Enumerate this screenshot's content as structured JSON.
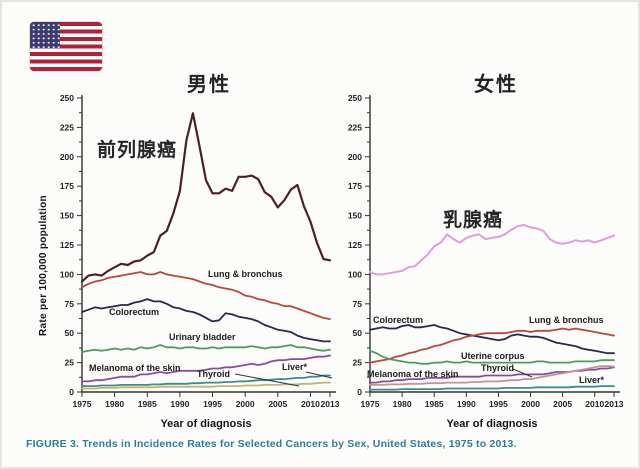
{
  "figure": {
    "caption": "FIGURE 3. Trends in Incidence Rates for Selected Cancers by Sex, United States, 1975 to 2013.",
    "caption_color": "#2a7e9e",
    "flag_icon": "us-flag",
    "axis_color": "#333333"
  },
  "chart_data": [
    {
      "type": "line",
      "title": "男性",
      "xlabel": "Year of diagnosis",
      "ylabel": "Rate per 100,000 population",
      "x_range": [
        1975,
        2013
      ],
      "ylim": [
        0,
        250
      ],
      "y_tick_step": 25,
      "grid": false,
      "x_tick_labels": [
        "1975",
        "1980",
        "1985",
        "1990",
        "1995",
        "2000",
        "2005",
        "2010",
        "2013"
      ],
      "series": [
        {
          "label": "前列腺癌",
          "color": "#4a2222",
          "values": [
            94,
            99,
            100,
            99,
            103,
            106,
            109,
            108,
            111,
            112,
            116,
            119,
            133,
            137,
            152,
            171,
            214,
            237,
            209,
            180,
            169,
            169,
            173,
            171,
            183,
            183,
            184,
            181,
            170,
            166,
            157,
            163,
            172,
            176,
            158,
            145,
            127,
            113,
            112
          ]
        },
        {
          "label": "Lung & bronchus",
          "color": "#b9463c",
          "values": [
            89,
            92,
            94,
            95,
            97,
            98,
            99,
            100,
            101,
            102,
            100,
            100,
            102,
            100,
            99,
            98,
            97,
            96,
            94,
            92,
            91,
            89,
            88,
            87,
            85,
            82,
            81,
            79,
            78,
            76,
            75,
            73,
            73,
            71,
            69,
            67,
            65,
            63,
            62
          ]
        },
        {
          "label": "Colorectum",
          "color": "#262b47",
          "values": [
            68,
            70,
            72,
            71,
            72,
            73,
            74,
            74,
            76,
            77,
            79,
            77,
            77,
            75,
            72,
            71,
            69,
            68,
            66,
            63,
            60,
            61,
            67,
            66,
            64,
            63,
            62,
            60,
            57,
            55,
            53,
            52,
            51,
            48,
            46,
            45,
            44,
            43,
            43
          ]
        },
        {
          "label": "Urinary bladder",
          "color": "#4d9c60",
          "values": [
            34,
            35,
            36,
            35,
            36,
            37,
            36,
            37,
            36,
            38,
            37,
            38,
            40,
            38,
            38,
            37,
            38,
            38,
            37,
            37,
            38,
            37,
            38,
            38,
            38,
            38,
            39,
            38,
            37,
            38,
            38,
            39,
            40,
            38,
            38,
            37,
            36,
            35,
            36
          ]
        },
        {
          "label": "Melanoma of the skin",
          "color": "#8a4b9c",
          "values": [
            9,
            9,
            10,
            10,
            11,
            12,
            13,
            13,
            13,
            15,
            15,
            16,
            17,
            16,
            17,
            18,
            18,
            18,
            18,
            19,
            20,
            20,
            21,
            21,
            22,
            23,
            24,
            23,
            24,
            26,
            27,
            27,
            28,
            28,
            28,
            29,
            30,
            30,
            31
          ]
        },
        {
          "label": "Liver*",
          "color": "#3b8d8d",
          "values": [
            5,
            5,
            5,
            5.5,
            5.5,
            5.5,
            6,
            6,
            6,
            6,
            6,
            6.5,
            6.5,
            7,
            7,
            7,
            7,
            7.5,
            7.5,
            8,
            8,
            8,
            8.5,
            8.5,
            9,
            9,
            9.5,
            10,
            10,
            10.5,
            11,
            11,
            11.5,
            12,
            12,
            13,
            13,
            14,
            14
          ]
        },
        {
          "label": "Thyroid",
          "color": "#c3b36d",
          "values": [
            3,
            3,
            3,
            3.5,
            3.5,
            3.5,
            4,
            4,
            4,
            4,
            4,
            4,
            4.5,
            4.5,
            4.5,
            4.5,
            4.5,
            4.5,
            4.5,
            4.5,
            4.5,
            5,
            5,
            5,
            5,
            5.5,
            5.5,
            5.5,
            6,
            6,
            6,
            6.5,
            6.5,
            6.5,
            7,
            7,
            7.5,
            8,
            8
          ]
        }
      ]
    },
    {
      "type": "line",
      "title": "女性",
      "xlabel": "Year of diagnosis",
      "ylabel": "",
      "x_range": [
        1975,
        2013
      ],
      "ylim": [
        0,
        250
      ],
      "y_tick_step": 25,
      "grid": false,
      "x_tick_labels": [
        "1975",
        "1980",
        "1985",
        "1990",
        "1995",
        "2000",
        "2005",
        "2010",
        "2013"
      ],
      "series": [
        {
          "label": "乳腺癌",
          "color": "#dfa0d8",
          "values": [
            102,
            100,
            100,
            101,
            102,
            103,
            106,
            107,
            112,
            117,
            124,
            127,
            134,
            130,
            127,
            131,
            133,
            134,
            130,
            131,
            132,
            134,
            138,
            141,
            142,
            140,
            139,
            137,
            130,
            127,
            126,
            127,
            129,
            128,
            129,
            127,
            129,
            131,
            133
          ]
        },
        {
          "label": "Colorectum",
          "color": "#262b47",
          "values": [
            53,
            54,
            55,
            54,
            54,
            56,
            57,
            55,
            55,
            56,
            57,
            55,
            54,
            52,
            50,
            49,
            48,
            47,
            46,
            45,
            44,
            45,
            48,
            49,
            48,
            47,
            47,
            46,
            44,
            42,
            41,
            40,
            39,
            37,
            36,
            35,
            34,
            33,
            33
          ]
        },
        {
          "label": "Lung & bronchus",
          "color": "#b9463c",
          "values": [
            25,
            26,
            27,
            28,
            30,
            31,
            33,
            34,
            36,
            37,
            39,
            40,
            42,
            44,
            45,
            47,
            48,
            49,
            50,
            50,
            50,
            50,
            51,
            52,
            52,
            51,
            52,
            52,
            52,
            53,
            54,
            53,
            54,
            53,
            52,
            51,
            50,
            49,
            48
          ]
        },
        {
          "label": "Uterine corpus",
          "color": "#4d9c60",
          "values": [
            35,
            33,
            30,
            28,
            27,
            26,
            25,
            25,
            24,
            24,
            25,
            25,
            26,
            25,
            25,
            26,
            25,
            25,
            25,
            25,
            25,
            25,
            25,
            25,
            25,
            25,
            26,
            26,
            25,
            25,
            25,
            25,
            26,
            26,
            26,
            26,
            27,
            27,
            27
          ]
        },
        {
          "label": "Melanoma of the skin",
          "color": "#8a4b9c",
          "values": [
            8,
            8,
            9,
            9,
            10,
            10,
            11,
            11,
            11,
            12,
            12,
            12,
            12,
            13,
            13,
            13,
            13,
            13,
            14,
            14,
            14,
            14,
            14,
            15,
            15,
            15,
            15,
            15,
            16,
            17,
            17,
            17,
            18,
            18,
            19,
            19,
            20,
            20,
            21
          ]
        },
        {
          "label": "Thyroid",
          "color": "#c79292",
          "values": [
            6,
            6,
            6,
            6.5,
            6.5,
            6.5,
            7,
            7,
            7,
            7.5,
            7.5,
            7.5,
            8,
            8,
            8,
            8,
            8.5,
            8.5,
            9,
            9,
            9,
            9.5,
            10,
            10,
            11,
            11,
            12,
            13,
            14,
            15,
            16,
            17,
            18,
            19,
            20,
            21,
            22,
            22,
            21.5
          ]
        },
        {
          "label": "Liver*",
          "color": "#3b8d8d",
          "values": [
            2,
            2,
            2,
            2,
            2,
            2.5,
            2.5,
            2.5,
            2.5,
            2.5,
            2.5,
            2.5,
            3,
            3,
            3,
            3,
            3,
            3,
            3,
            3,
            3,
            3.5,
            3.5,
            3.5,
            3.5,
            3.5,
            4,
            4,
            4,
            4,
            4,
            4,
            4.5,
            4.5,
            4.5,
            4.5,
            5,
            5,
            5
          ]
        }
      ]
    }
  ]
}
